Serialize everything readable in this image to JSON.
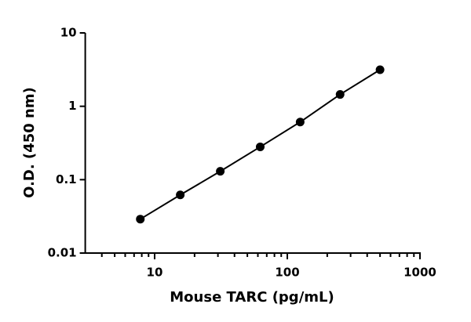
{
  "chart_data": {
    "type": "scatter",
    "x_label": "Mouse TARC (pg/mL)",
    "y_label": "O.D. (450 nm)",
    "x": [
      7.8,
      15.6,
      31.25,
      62.5,
      125,
      250,
      500
    ],
    "values": [
      0.029,
      0.062,
      0.13,
      0.28,
      0.61,
      1.45,
      3.15
    ],
    "color": "#000000",
    "xlim": [
      3,
      1000
    ],
    "xticks": [
      10,
      100,
      1000
    ],
    "xminor_ticks": [
      4,
      5,
      6,
      7,
      8,
      9,
      20,
      30,
      40,
      50,
      60,
      70,
      80,
      90,
      200,
      300,
      400,
      500,
      600,
      700,
      800,
      900
    ],
    "ylim": [
      0.01,
      10
    ],
    "yticks": [
      0.01,
      0.1,
      1,
      10
    ],
    "xlog": true,
    "ylog": true,
    "line": true
  }
}
